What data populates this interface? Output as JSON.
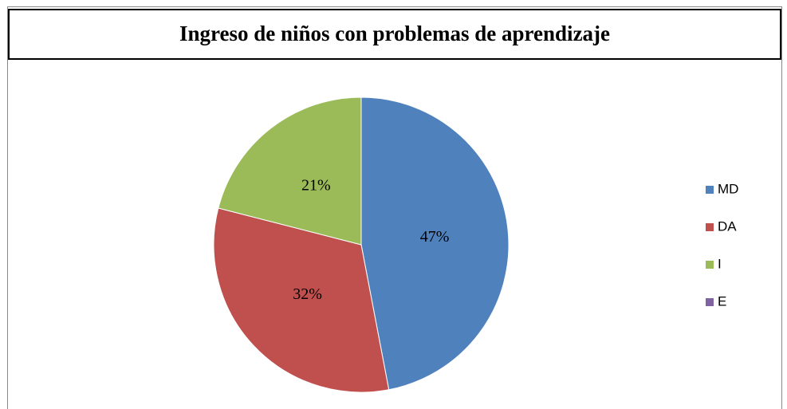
{
  "chart_data": {
    "type": "pie",
    "title": "Ingreso de niños con problemas de aprendizaje",
    "categories": [
      "MD",
      "DA",
      "I",
      "E"
    ],
    "values": [
      47,
      32,
      21,
      0
    ],
    "value_labels": [
      "47%",
      "32%",
      "21%",
      null
    ],
    "colors": [
      "#4f81bd",
      "#c0504d",
      "#9bbb59",
      "#8064a2"
    ],
    "legend": "right"
  }
}
